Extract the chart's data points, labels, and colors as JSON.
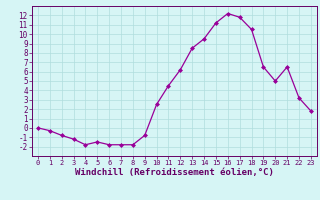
{
  "x": [
    0,
    1,
    2,
    3,
    4,
    5,
    6,
    7,
    8,
    9,
    10,
    11,
    12,
    13,
    14,
    15,
    16,
    17,
    18,
    19,
    20,
    21,
    22,
    23
  ],
  "y": [
    0.0,
    -0.3,
    -0.8,
    -1.2,
    -1.8,
    -1.5,
    -1.8,
    -1.8,
    -1.8,
    -0.8,
    2.5,
    4.5,
    6.2,
    8.5,
    9.5,
    11.2,
    12.2,
    11.8,
    10.5,
    6.5,
    5.0,
    6.5,
    3.2,
    1.8
  ],
  "line_color": "#990099",
  "marker": "D",
  "marker_size": 2.0,
  "bg_color": "#d6f5f5",
  "grid_color": "#b0dede",
  "axis_color": "#660066",
  "spine_color": "#660066",
  "xlabel": "Windchill (Refroidissement éolien,°C)",
  "xlabel_fontsize": 6.5,
  "ylim": [
    -3,
    13
  ],
  "xlim": [
    -0.5,
    23.5
  ],
  "yticks": [
    -2,
    -1,
    0,
    1,
    2,
    3,
    4,
    5,
    6,
    7,
    8,
    9,
    10,
    11,
    12
  ],
  "xticks": [
    0,
    1,
    2,
    3,
    4,
    5,
    6,
    7,
    8,
    9,
    10,
    11,
    12,
    13,
    14,
    15,
    16,
    17,
    18,
    19,
    20,
    21,
    22,
    23
  ],
  "tick_fontsize": 5.5,
  "xtick_fontsize": 5.0,
  "linewidth": 0.9
}
